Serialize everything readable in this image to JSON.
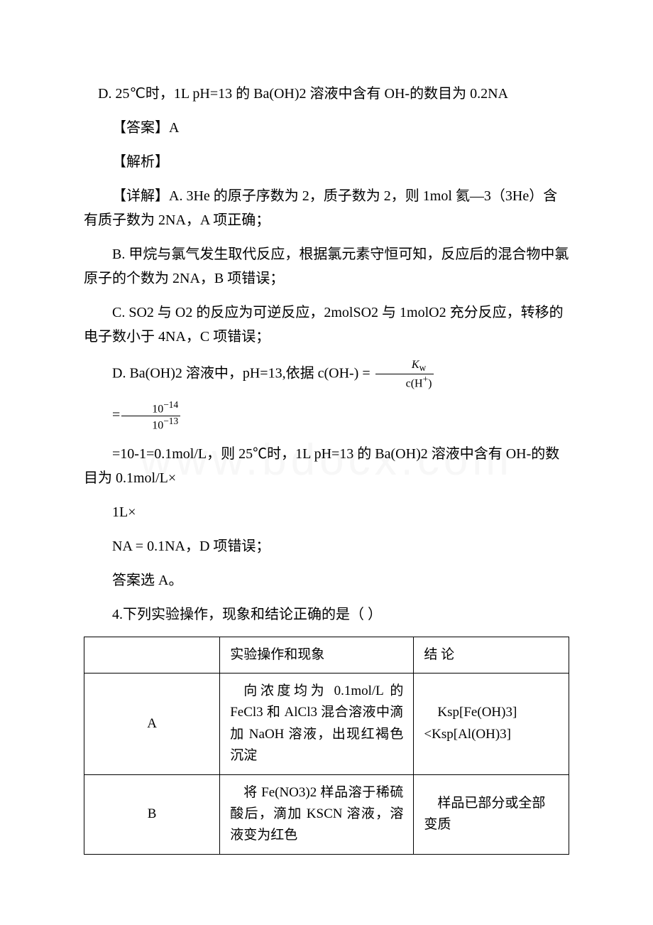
{
  "watermark": "www.bdocx.com",
  "p1": "D. 25℃时，1L pH=13 的 Ba(OH)2 溶液中含有 OH-的数目为 0.2NA",
  "p2": "【答案】A",
  "p3": "【解析】",
  "p4": "【详解】A. 3He 的原子序数为 2，质子数为 2，则 1mol 氦—3（3He）含有质子数为 2NA，A 项正确；",
  "p5": "B. 甲烷与氯气发生取代反应，根据氯元素守恒可知，反应后的混合物中氯原子的个数为 2NA，B 项错误；",
  "p6": "C. SO2 与 O2 的反应为可逆反应，2molSO2 与 1molO2 充分反应，转移的电子数小于 4NA，C 项错误；",
  "p7a": "D. Ba(OH)2 溶液中，pH=13,依据 c(OH-) = ",
  "frac1": {
    "num": "K",
    "num_sub": "w",
    "den_pre": "c(H",
    "den_sup": "+",
    "den_post": ")"
  },
  "eq_prefix": "=",
  "frac2": {
    "num_base": "10",
    "num_exp": "−14",
    "den_base": "10",
    "den_exp": "−13"
  },
  "p8": "=10-1=0.1mol/L，则 25℃时，1L pH=13 的 Ba(OH)2 溶液中含有 OH-的数目为 0.1mol/L×",
  "p9": "1L×",
  "p10": "NA = 0.1NA，D 项错误；",
  "p11": "答案选 A。",
  "p12": "4.下列实验操作，现象和结论正确的是（ ）",
  "table": {
    "header": {
      "c1": "",
      "c2": "实验操作和现象",
      "c3": "结 论"
    },
    "rows": [
      {
        "c1": "A",
        "c2": "向浓度均为 0.1mol/L 的 FeCl3 和 AlCl3 混合溶液中滴加 NaOH 溶液，出现红褐色沉淀",
        "c3": "Ksp[Fe(OH)3]<Ksp[Al(OH)3]"
      },
      {
        "c1": "B",
        "c2": "将 Fe(NO3)2 样品溶于稀硫酸后，滴加 KSCN 溶液，溶液变为红色",
        "c3": "样品已部分或全部变质"
      }
    ]
  },
  "colors": {
    "text": "#000000",
    "bg": "#ffffff",
    "border": "#000000",
    "watermark": "#f7f7f7"
  }
}
